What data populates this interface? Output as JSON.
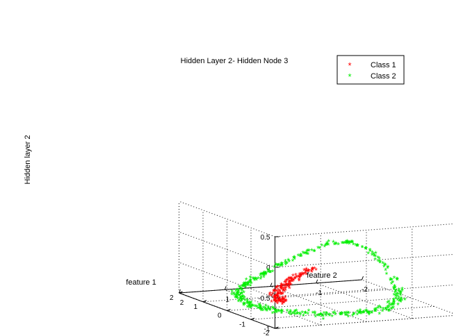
{
  "chart_data": {
    "type": "scatter",
    "projection": "3d",
    "title": "Hidden Layer 2- Hidden Node 3",
    "xlabel": "feature 1",
    "ylabel": "feature 2",
    "zlabel": "Hidden layer 2",
    "xlim": [
      -2,
      2
    ],
    "ylim": [
      -2,
      2
    ],
    "zlim": [
      -1,
      0.5
    ],
    "xticks": [
      "-2",
      "-1",
      "0",
      "1",
      "2"
    ],
    "yticks": [
      "2",
      "1",
      "0",
      "-1",
      "-2"
    ],
    "zticks": [
      "-1",
      "-0.5",
      "0",
      "0.5"
    ],
    "grid": true,
    "legend_position": "top-right",
    "marker": "*",
    "series": [
      {
        "name": "Class 1",
        "color": "#ff0000",
        "generator": "inner_arc",
        "count": 150,
        "points_sample": [
          [
            0.0,
            0.6,
            -0.9
          ],
          [
            0.5,
            0.2,
            -0.75
          ],
          [
            1.0,
            -0.5,
            -0.5
          ],
          [
            0.8,
            -0.2,
            -0.6
          ]
        ]
      },
      {
        "name": "Class 2",
        "color": "#00ee00",
        "generator": "outer_ring",
        "count": 420,
        "points_sample": [
          [
            1.5,
            1.2,
            -0.9
          ],
          [
            -1.2,
            1.5,
            -0.85
          ],
          [
            1.4,
            -1.2,
            -0.4
          ],
          [
            0.5,
            -1.5,
            -0.2
          ],
          [
            -1.6,
            -0.8,
            -0.9
          ]
        ]
      }
    ]
  }
}
